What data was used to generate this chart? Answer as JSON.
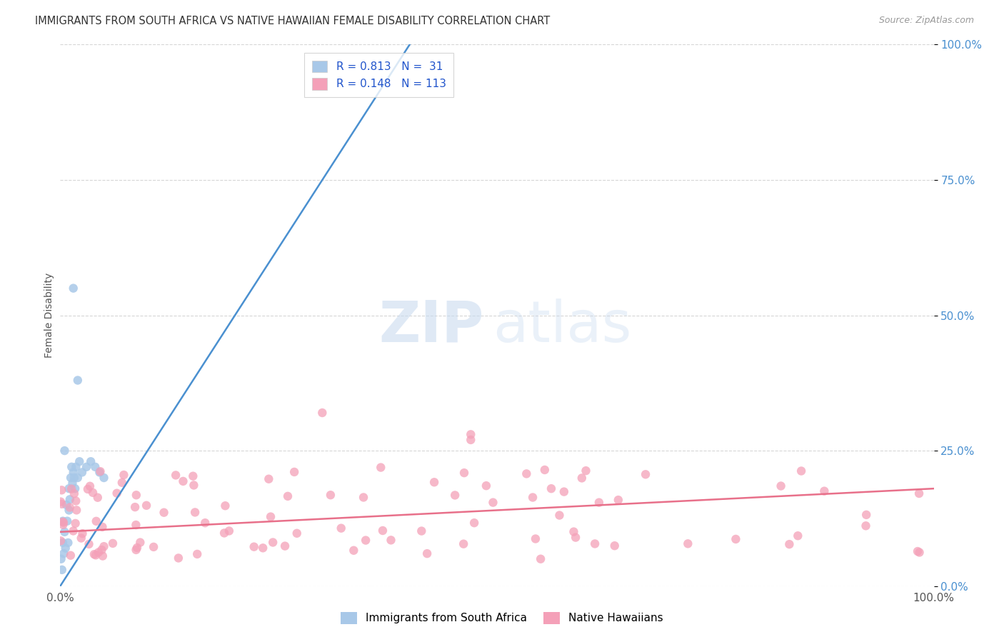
{
  "title": "IMMIGRANTS FROM SOUTH AFRICA VS NATIVE HAWAIIAN FEMALE DISABILITY CORRELATION CHART",
  "source": "Source: ZipAtlas.com",
  "ylabel": "Female Disability",
  "blue_R": 0.813,
  "blue_N": 31,
  "pink_R": 0.148,
  "pink_N": 113,
  "blue_color": "#a8c8e8",
  "pink_color": "#f4a0b8",
  "blue_line_color": "#4a90d0",
  "pink_line_color": "#e8708a",
  "watermark_zip_color": "#c5d8ee",
  "watermark_atlas_color": "#c5d8ee",
  "background_color": "#ffffff",
  "grid_color": "#cccccc",
  "ytick_color": "#4a90d0",
  "title_color": "#333333",
  "source_color": "#999999",
  "xlim": [
    0,
    100
  ],
  "ylim": [
    0,
    100
  ],
  "ytick_vals": [
    0,
    25,
    50,
    75,
    100
  ],
  "xtick_vals": [
    0,
    100
  ],
  "xtick_labels": [
    "0.0%",
    "100.0%"
  ],
  "ytick_labels": [
    "0.0%",
    "25.0%",
    "50.0%",
    "75.0%",
    "100.0%"
  ],
  "blue_line_x": [
    0,
    40
  ],
  "blue_line_y": [
    0,
    100
  ],
  "pink_line_x": [
    0,
    100
  ],
  "pink_line_y": [
    10,
    18
  ],
  "legend_label_blue": "Immigrants from South Africa",
  "legend_label_pink": "Native Hawaiians"
}
